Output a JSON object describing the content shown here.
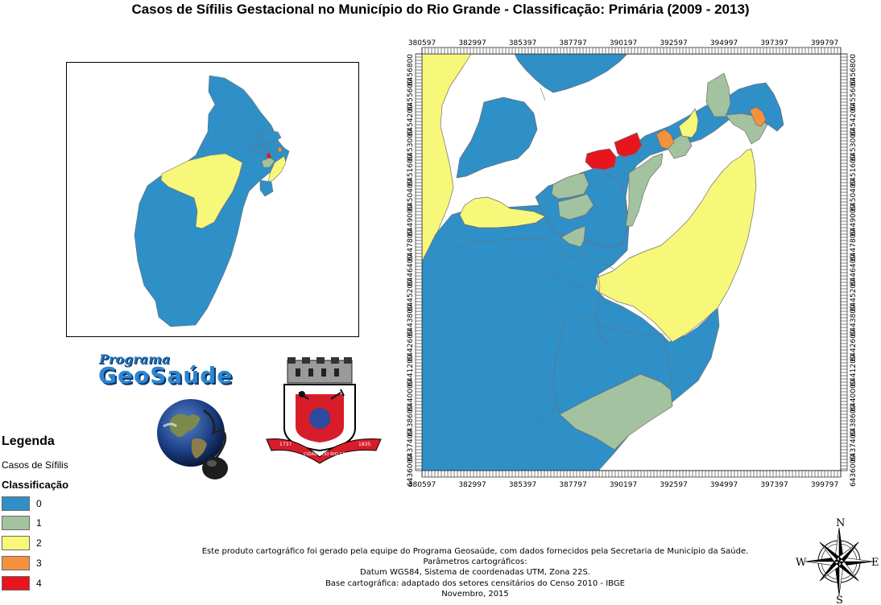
{
  "title": "Casos de Sífilis Gestacional no Município do Rio Grande - Classificação: Primária (2009 - 2013)",
  "colors": {
    "class_0": "#2f8fc7",
    "class_1": "#a3c29f",
    "class_2": "#f7f779",
    "class_3": "#f5913d",
    "class_4": "#e8141e",
    "boundary": "#6f6f6f"
  },
  "x_ticks": [
    "380597",
    "382997",
    "385397",
    "387797",
    "390197",
    "392597",
    "394997",
    "397397",
    "399797"
  ],
  "y_ticks": [
    "6456800",
    "6455600",
    "6454200",
    "6453000",
    "6451600",
    "6450400",
    "6449000",
    "6447800",
    "6446400",
    "6445200",
    "6443800",
    "6442600",
    "6441200",
    "6440000",
    "6438600",
    "6437400",
    "6436000"
  ],
  "logo": {
    "program": "Programa",
    "name": "GeoSaúde"
  },
  "coat_of_arms": {
    "year_left": "1737",
    "banner": "CIDADE DO RIO GRANDE",
    "year_right": "1835"
  },
  "legend": {
    "title": "Legenda",
    "subtitle": "Casos de Sífilis",
    "classification": "Classificação",
    "items": [
      {
        "label": "0",
        "color": "#2f8fc7"
      },
      {
        "label": "1",
        "color": "#a3c29f"
      },
      {
        "label": "2",
        "color": "#f7f779"
      },
      {
        "label": "3",
        "color": "#f5913d"
      },
      {
        "label": "4",
        "color": "#e8141e"
      }
    ]
  },
  "credits": [
    "Este produto cartográfico foi gerado pela equipe do Programa Geosaúde, com dados fornecidos pela Secretaria de Município da Saúde.",
    "Parâmetros cartográficos:",
    "Datum WGS84, Sistema de coordenadas UTM, Zona 22S.",
    "Base cartográfica: adaptado dos setores censitários do Censo 2010 - IBGE",
    "Novembro, 2015"
  ],
  "compass": {
    "n": "N",
    "s": "S",
    "e": "E",
    "w": "W"
  }
}
